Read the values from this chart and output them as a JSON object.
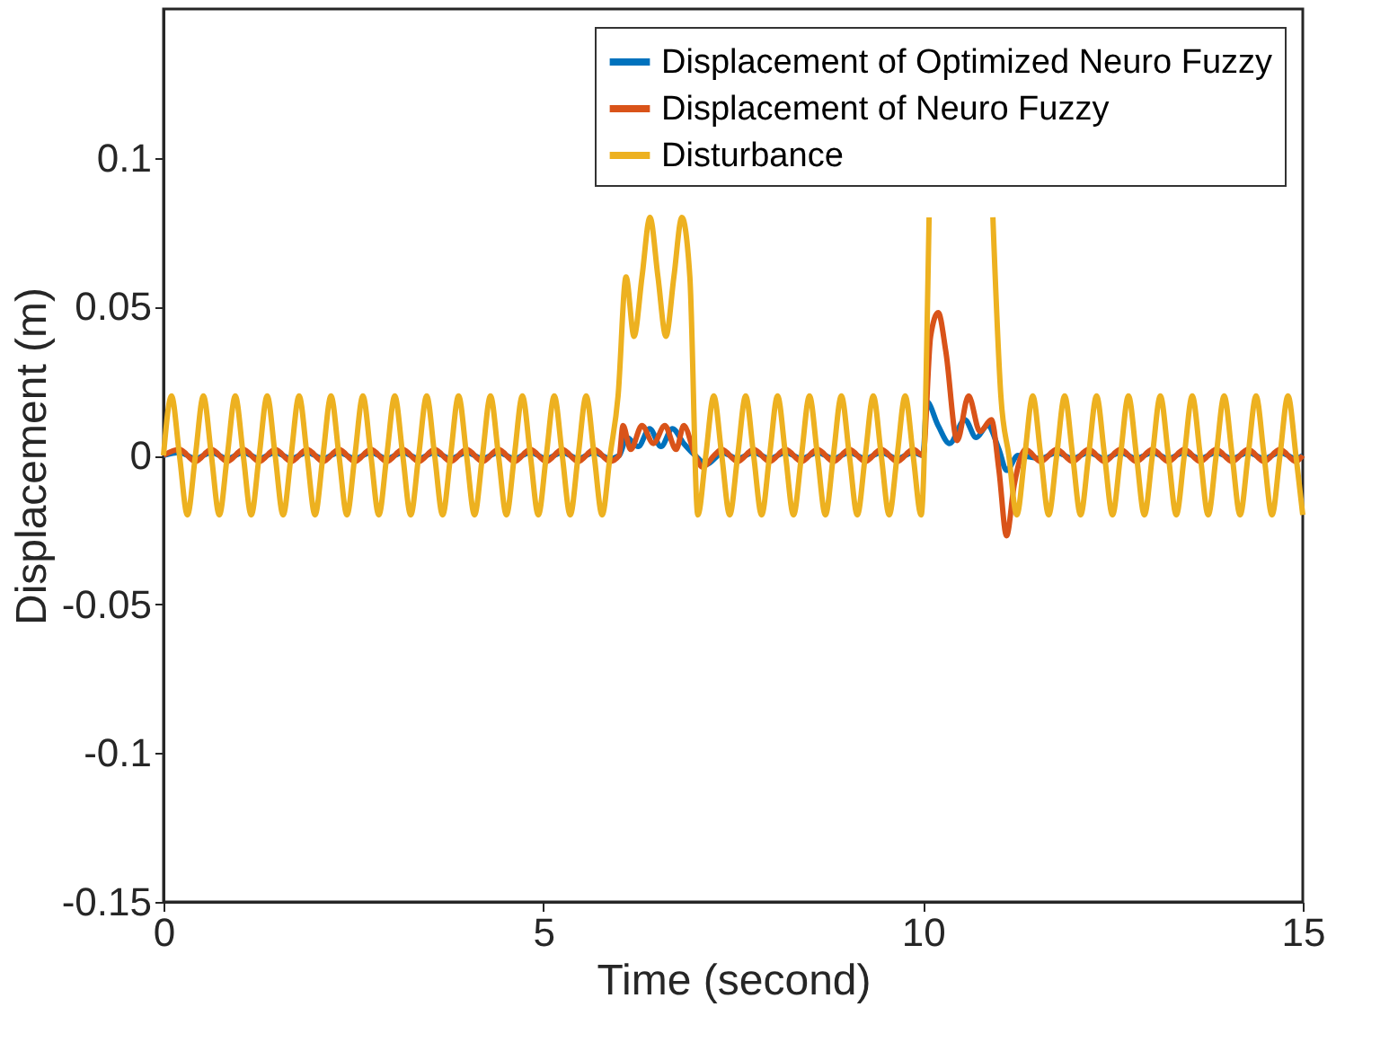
{
  "chart_data": {
    "type": "line",
    "xlabel": "Time (second)",
    "ylabel": "Displacement (m)",
    "xlim": [
      0,
      15
    ],
    "xticks": [
      0,
      5,
      10,
      15
    ],
    "ylim": [
      -0.15,
      0.15
    ],
    "yticks": [
      -0.15,
      -0.1,
      -0.05,
      0,
      0.05,
      0.1
    ],
    "grid": false,
    "legend": "top right",
    "line_style": "solid",
    "series": [
      {
        "name": "Displacement of Optimized Neuro Fuzzy",
        "color": "#0072bd",
        "x": [
          0,
          0.21,
          0.42,
          0.63,
          0.84,
          1.05,
          1.26,
          1.47,
          1.68,
          1.89,
          2.1,
          2.31,
          2.52,
          2.73,
          2.94,
          3.15,
          3.36,
          3.57,
          3.78,
          3.99,
          4.2,
          4.41,
          4.62,
          4.83,
          5.04,
          5.25,
          5.46,
          5.67,
          5.88,
          6.0,
          6.1,
          6.25,
          6.4,
          6.55,
          6.7,
          6.85,
          7.0,
          7.15,
          7.3,
          7.35,
          7.56,
          7.77,
          7.98,
          8.19,
          8.4,
          8.61,
          8.82,
          9.03,
          9.24,
          9.45,
          9.66,
          9.87,
          10.0,
          10.05,
          10.2,
          10.35,
          10.55,
          10.7,
          10.85,
          11.0,
          11.1,
          11.25,
          11.55,
          11.76,
          11.97,
          12.18,
          12.39,
          12.6,
          12.81,
          13.02,
          13.23,
          13.44,
          13.65,
          13.86,
          14.07,
          14.28,
          14.49,
          14.7,
          14.91,
          15
        ],
        "values": [
          0,
          0.001,
          -0.001,
          0.001,
          -0.001,
          0.001,
          -0.001,
          0.001,
          -0.001,
          0.001,
          -0.001,
          0.001,
          -0.001,
          0.001,
          -0.001,
          0.001,
          -0.001,
          0.001,
          -0.001,
          0.001,
          -0.001,
          0.001,
          -0.001,
          0.001,
          -0.001,
          0.001,
          -0.001,
          0.001,
          -0.001,
          0,
          0.006,
          0.003,
          0.009,
          0.003,
          0.009,
          0.004,
          0,
          -0.003,
          0,
          0.001,
          -0.001,
          0.001,
          -0.001,
          0.001,
          -0.001,
          0.001,
          -0.001,
          0.001,
          -0.001,
          0.001,
          -0.001,
          0.001,
          0,
          0.018,
          0.01,
          0.004,
          0.012,
          0.006,
          0.01,
          0.002,
          -0.005,
          0,
          -0.001,
          0.001,
          -0.001,
          0.001,
          -0.001,
          0.001,
          -0.001,
          0.001,
          -0.001,
          0.001,
          -0.001,
          0.001,
          -0.001,
          0.001,
          -0.001,
          0.001,
          -0.001,
          0
        ]
      },
      {
        "name": "Displacement of Neuro Fuzzy",
        "color": "#d95319",
        "x": [
          0,
          0.21,
          0.42,
          0.63,
          0.84,
          1.05,
          1.26,
          1.47,
          1.68,
          1.89,
          2.1,
          2.31,
          2.52,
          2.73,
          2.94,
          3.15,
          3.36,
          3.57,
          3.78,
          3.99,
          4.2,
          4.41,
          4.62,
          4.83,
          5.04,
          5.25,
          5.46,
          5.67,
          5.88,
          6.0,
          6.05,
          6.15,
          6.3,
          6.45,
          6.6,
          6.75,
          6.85,
          7.0,
          7.1,
          7.25,
          7.35,
          7.56,
          7.77,
          7.98,
          8.19,
          8.4,
          8.61,
          8.82,
          9.03,
          9.24,
          9.45,
          9.66,
          9.87,
          10.0,
          10.1,
          10.2,
          10.3,
          10.45,
          10.6,
          10.75,
          10.9,
          11.0,
          11.1,
          11.2,
          11.35,
          11.55,
          11.76,
          11.97,
          12.18,
          12.39,
          12.6,
          12.81,
          13.02,
          13.23,
          13.44,
          13.65,
          13.86,
          14.07,
          14.28,
          14.49,
          14.7,
          14.91,
          15
        ],
        "values": [
          0,
          0.002,
          -0.002,
          0.002,
          -0.002,
          0.002,
          -0.002,
          0.002,
          -0.002,
          0.002,
          -0.002,
          0.002,
          -0.002,
          0.002,
          -0.002,
          0.002,
          -0.002,
          0.002,
          -0.002,
          0.002,
          -0.002,
          0.002,
          -0.002,
          0.002,
          -0.002,
          0.002,
          -0.002,
          0.002,
          -0.002,
          0,
          0.01,
          0.002,
          0.01,
          0.004,
          0.01,
          0.002,
          0.01,
          0,
          -0.004,
          0,
          0.002,
          -0.002,
          0.002,
          -0.002,
          0.002,
          -0.002,
          0.002,
          -0.002,
          0.002,
          -0.002,
          0.002,
          -0.002,
          0.002,
          0,
          0.04,
          0.048,
          0.035,
          0.005,
          0.02,
          0.008,
          0.012,
          -0.005,
          -0.027,
          -0.01,
          0.002,
          -0.002,
          0.002,
          -0.002,
          0.002,
          -0.002,
          0.002,
          -0.002,
          0.002,
          -0.002,
          0.002,
          -0.002,
          0.002,
          -0.002,
          0.002,
          -0.002,
          0.002,
          -0.002,
          0
        ]
      },
      {
        "name": "Disturbance",
        "color": "#edb120",
        "x": [
          0,
          0.105,
          0.21,
          0.315,
          0.42,
          0.525,
          0.63,
          0.735,
          0.84,
          0.945,
          1.05,
          1.155,
          1.26,
          1.365,
          1.47,
          1.575,
          1.68,
          1.785,
          1.89,
          1.995,
          2.1,
          2.205,
          2.31,
          2.415,
          2.52,
          2.625,
          2.73,
          2.835,
          2.94,
          3.045,
          3.15,
          3.255,
          3.36,
          3.465,
          3.57,
          3.675,
          3.78,
          3.885,
          3.99,
          4.095,
          4.2,
          4.305,
          4.41,
          4.515,
          4.62,
          4.725,
          4.83,
          4.935,
          5.04,
          5.145,
          5.25,
          5.355,
          5.46,
          5.565,
          5.67,
          5.775,
          5.88,
          5.985,
          6.09,
          6.195,
          6.3,
          6.405,
          6.51,
          6.615,
          6.72,
          6.825,
          6.93,
          7.035,
          7.14,
          7.245,
          7.35,
          7.455,
          7.56,
          7.665,
          7.77,
          7.875,
          7.98,
          8.085,
          8.19,
          8.295,
          8.4,
          8.505,
          8.61,
          8.715,
          8.82,
          8.925,
          9.03,
          9.135,
          9.24,
          9.345,
          9.45,
          9.555,
          9.66,
          9.765,
          9.87,
          9.975,
          10.08,
          10.185,
          10.29,
          10.395,
          10.5,
          10.605,
          10.71,
          10.815,
          10.92,
          11.025,
          11.13,
          11.235,
          11.34,
          11.445,
          11.55,
          11.655,
          11.76,
          11.865,
          11.97,
          12.075,
          12.18,
          12.285,
          12.39,
          12.495,
          12.6,
          12.705,
          12.81,
          12.915,
          13.02,
          13.125,
          13.23,
          13.335,
          13.44,
          13.545,
          13.65,
          13.755,
          13.86,
          13.965,
          14.07,
          14.175,
          14.28,
          14.385,
          14.49,
          14.595,
          14.7,
          14.805,
          14.91,
          15
        ],
        "values": [
          0,
          0.02,
          0,
          -0.02,
          0,
          0.02,
          0,
          -0.02,
          0,
          0.02,
          0,
          -0.02,
          0,
          0.02,
          0,
          -0.02,
          0,
          0.02,
          0,
          -0.02,
          0,
          0.02,
          0,
          -0.02,
          0,
          0.02,
          0,
          -0.02,
          0,
          0.02,
          0,
          -0.02,
          0,
          0.02,
          0,
          -0.02,
          0,
          0.02,
          0,
          -0.02,
          0,
          0.02,
          0,
          -0.02,
          0,
          0.02,
          0,
          -0.02,
          0,
          0.02,
          0,
          -0.02,
          0,
          0.02,
          0,
          -0.02,
          0,
          0.02,
          0.06,
          0.04,
          0.06,
          0.08,
          0.06,
          0.04,
          0.06,
          0.08,
          0.06,
          -0.02,
          0,
          0.02,
          0,
          -0.02,
          0,
          0.02,
          0,
          -0.02,
          0,
          0.02,
          0,
          -0.02,
          0,
          0.02,
          0,
          -0.02,
          0,
          0.02,
          0,
          -0.02,
          0,
          0.02,
          0,
          -0.02,
          0,
          0.02,
          0,
          -0.02,
          0.08,
          null,
          null,
          null,
          null,
          null,
          null,
          null,
          0.08,
          0.02,
          0,
          -0.02,
          0,
          0.02,
          0,
          -0.02,
          0,
          0.02,
          0,
          -0.02,
          0,
          0.02,
          0,
          -0.02,
          0,
          0.02,
          0,
          -0.02,
          0,
          0.02,
          0,
          -0.02,
          0,
          0.02,
          0,
          -0.02,
          0,
          0.02,
          0,
          -0.02,
          0,
          0.02,
          0,
          -0.02,
          0,
          0.02,
          0,
          -0.02
        ]
      }
    ]
  }
}
